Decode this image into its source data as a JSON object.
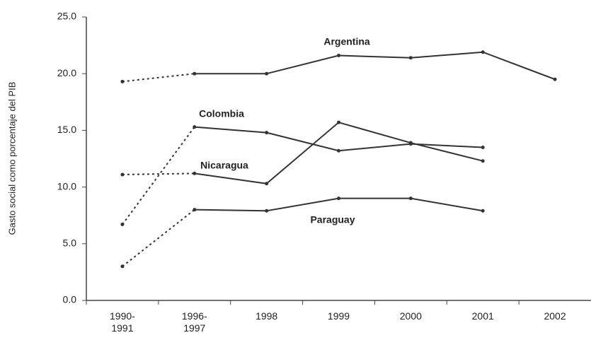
{
  "chart_data": {
    "type": "line",
    "y_label": "Gasto social como porcentaje del PIB",
    "categories": [
      "1990-\n1991",
      "1996-\n1997",
      "1998",
      "1999",
      "2000",
      "2001",
      "2002"
    ],
    "series": [
      {
        "name": "Argentina",
        "color": "#333333",
        "values": [
          19.3,
          20.0,
          20.0,
          21.6,
          21.4,
          21.9,
          19.5
        ]
      },
      {
        "name": "Colombia",
        "color": "#333333",
        "values": [
          6.7,
          15.3,
          14.8,
          13.2,
          13.8,
          13.5,
          null
        ]
      },
      {
        "name": "Nicaragua",
        "color": "#333333",
        "values": [
          11.1,
          11.2,
          10.3,
          15.7,
          13.9,
          12.3,
          null
        ]
      },
      {
        "name": "Paraguay",
        "color": "#333333",
        "values": [
          3.0,
          8.0,
          7.9,
          9.0,
          9.0,
          7.9,
          null
        ]
      }
    ],
    "ylim": [
      0,
      25
    ],
    "yticks": [
      {
        "value": 0,
        "label": "0.0"
      },
      {
        "value": 5,
        "label": "5.0"
      },
      {
        "value": 10,
        "label": "10.0"
      },
      {
        "value": 15,
        "label": "15.0"
      },
      {
        "value": 20,
        "label": "20.0"
      },
      {
        "value": 25,
        "label": "25.0"
      }
    ],
    "grid": false
  }
}
